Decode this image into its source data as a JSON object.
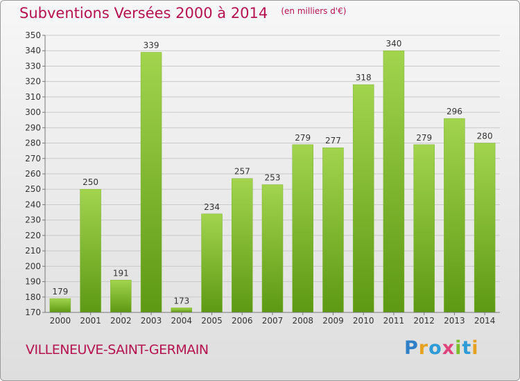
{
  "title": "Subventions Versées 2000 à 2014",
  "subtitle": "(en milliers d'€)",
  "city": "VILLENEUVE-SAINT-GERMAIN",
  "logo": {
    "text": "Proxiti"
  },
  "colors": {
    "title": "#b5124f",
    "bar_light": "#9fd24a",
    "bar_dark": "#5e9a14"
  },
  "chart_data": {
    "type": "bar",
    "categories": [
      "2000",
      "2001",
      "2002",
      "2003",
      "2004",
      "2005",
      "2006",
      "2007",
      "2008",
      "2009",
      "2010",
      "2011",
      "2012",
      "2013",
      "2014"
    ],
    "values": [
      179,
      250,
      191,
      339,
      173,
      234,
      257,
      253,
      279,
      277,
      318,
      340,
      279,
      296,
      280
    ],
    "title": "Subventions Versées 2000 à 2014",
    "subtitle": "(en milliers d'€)",
    "ylim": [
      170,
      350
    ],
    "yticks": [
      170,
      180,
      190,
      200,
      210,
      220,
      230,
      240,
      250,
      260,
      270,
      280,
      290,
      300,
      310,
      320,
      330,
      340,
      350
    ],
    "grid": true,
    "data_labels": true
  }
}
